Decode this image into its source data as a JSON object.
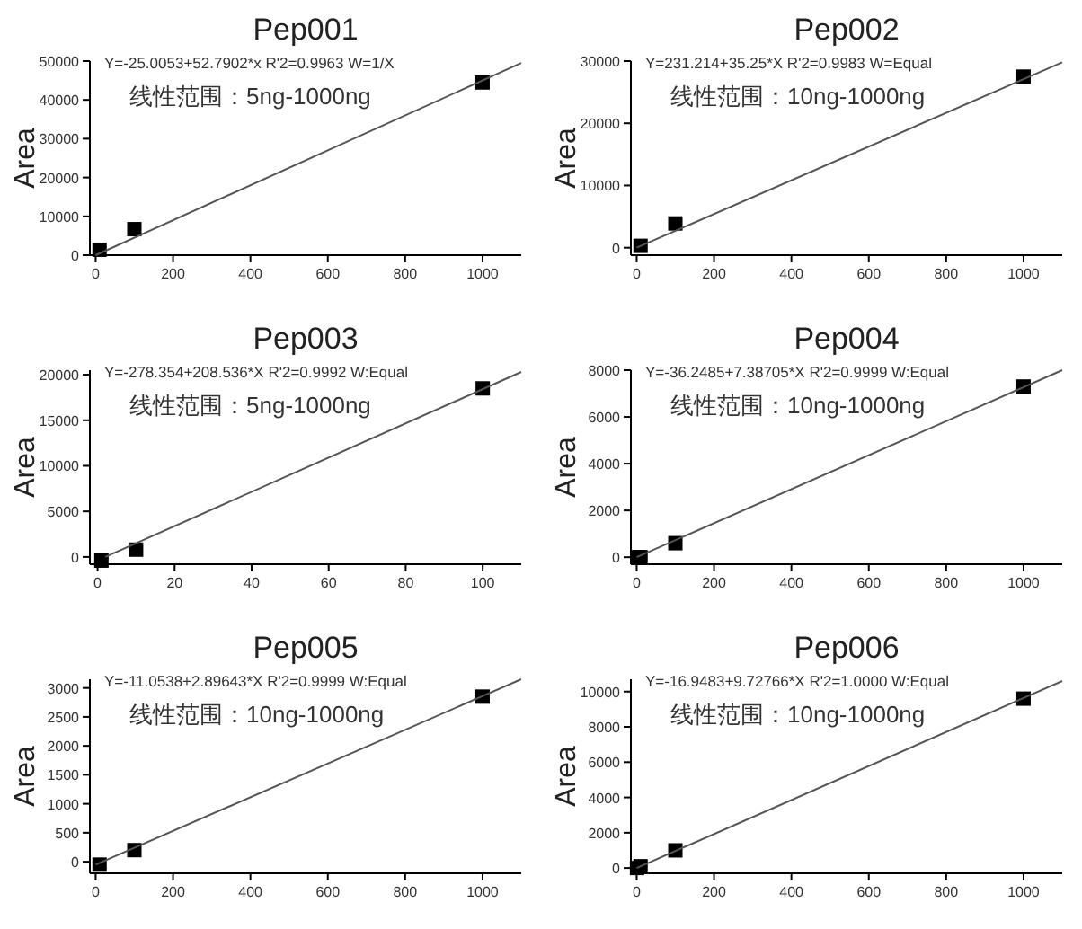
{
  "chart_data": [
    {
      "type": "scatter",
      "title": "Pep001",
      "ylabel": "Area",
      "xlim": [
        -15,
        1100
      ],
      "ylim": [
        0,
        50000
      ],
      "xticks": [
        0,
        200,
        400,
        600,
        800,
        1000
      ],
      "yticks": [
        0,
        10000,
        20000,
        30000,
        40000,
        50000
      ],
      "annotations": [
        "Y=-25.0053+52.7902*x R'2=0.9963 W=1/X",
        "线性范围：5ng-1000ng"
      ],
      "series": [
        {
          "marker": "square",
          "color": "#000000",
          "x": [
            10,
            100,
            1000
          ],
          "values": [
            1400,
            6700,
            44500
          ]
        },
        {
          "type": "line",
          "marker": "none",
          "color": "#555555",
          "x": [
            0,
            1100
          ],
          "values": [
            0,
            49500
          ]
        }
      ]
    },
    {
      "type": "scatter",
      "title": "Pep002",
      "ylabel": "Area",
      "xlim": [
        -15,
        1100
      ],
      "ylim": [
        -1200,
        30000
      ],
      "xticks": [
        0,
        200,
        400,
        600,
        800,
        1000
      ],
      "yticks": [
        0,
        10000,
        20000,
        30000
      ],
      "annotations": [
        "Y=231.214+35.25*X R'2=0.9983 W=Equal",
        "线性范围：10ng-1000ng"
      ],
      "series": [
        {
          "marker": "square",
          "color": "#000000",
          "x": [
            10,
            100,
            1000
          ],
          "values": [
            300,
            3900,
            27500
          ]
        },
        {
          "type": "line",
          "marker": "none",
          "color": "#555555",
          "x": [
            0,
            1100
          ],
          "values": [
            0,
            29800
          ]
        }
      ]
    },
    {
      "type": "scatter",
      "title": "Pep003",
      "ylabel": "Area",
      "xlim": [
        -2,
        110
      ],
      "ylim": [
        -800,
        20500
      ],
      "xticks": [
        0,
        20,
        40,
        60,
        80,
        100
      ],
      "yticks": [
        0,
        5000,
        10000,
        15000,
        20000
      ],
      "annotations": [
        "Y=-278.354+208.536*X R'2=0.9992 W:Equal",
        "线性范围：5ng-1000ng"
      ],
      "series": [
        {
          "marker": "square",
          "color": "#000000",
          "x": [
            1,
            10,
            100
          ],
          "values": [
            -400,
            800,
            18500
          ]
        },
        {
          "type": "line",
          "marker": "none",
          "color": "#555555",
          "x": [
            2,
            110
          ],
          "values": [
            0,
            20300
          ]
        }
      ]
    },
    {
      "type": "scatter",
      "title": "Pep004",
      "ylabel": "Area",
      "xlim": [
        -15,
        1100
      ],
      "ylim": [
        -300,
        8000
      ],
      "xticks": [
        0,
        200,
        400,
        600,
        800,
        1000
      ],
      "yticks": [
        0,
        2000,
        4000,
        6000,
        8000
      ],
      "annotations": [
        "Y=-36.2485+7.38705*X R'2=0.9999 W:Equal",
        "线性范围：10ng-1000ng"
      ],
      "series": [
        {
          "marker": "square",
          "color": "#000000",
          "x": [
            5,
            10,
            100,
            1000
          ],
          "values": [
            0,
            0,
            600,
            7300
          ]
        },
        {
          "type": "line",
          "marker": "none",
          "color": "#555555",
          "x": [
            0,
            1100
          ],
          "values": [
            0,
            8000
          ]
        }
      ]
    },
    {
      "type": "scatter",
      "title": "Pep005",
      "ylabel": "Area",
      "xlim": [
        -15,
        1100
      ],
      "ylim": [
        -200,
        3150
      ],
      "xticks": [
        0,
        200,
        400,
        600,
        800,
        1000
      ],
      "yticks": [
        0,
        500,
        1000,
        1500,
        2000,
        2500,
        3000
      ],
      "annotations": [
        "Y=-11.0538+2.89643*X R'2=0.9999 W:Equal",
        "线性范围：10ng-1000ng"
      ],
      "series": [
        {
          "marker": "square",
          "color": "#000000",
          "x": [
            10,
            100,
            1000
          ],
          "values": [
            -50,
            200,
            2850
          ]
        },
        {
          "type": "line",
          "marker": "none",
          "color": "#555555",
          "x": [
            0,
            1100
          ],
          "values": [
            -50,
            3150
          ]
        }
      ]
    },
    {
      "type": "scatter",
      "title": "Pep006",
      "ylabel": "Area",
      "xlim": [
        -15,
        1100
      ],
      "ylim": [
        -300,
        10700
      ],
      "xticks": [
        0,
        200,
        400,
        600,
        800,
        1000
      ],
      "yticks": [
        0,
        2000,
        4000,
        6000,
        8000,
        10000
      ],
      "annotations": [
        "Y=-16.9483+9.72766*X R'2=1.0000 W:Equal",
        "线性范围：10ng-1000ng"
      ],
      "series": [
        {
          "marker": "square",
          "color": "#000000",
          "x": [
            1,
            10,
            100,
            1000
          ],
          "values": [
            0,
            100,
            1000,
            9600
          ]
        },
        {
          "type": "line",
          "marker": "none",
          "color": "#555555",
          "x": [
            0,
            1100
          ],
          "values": [
            0,
            10600
          ]
        }
      ]
    }
  ]
}
